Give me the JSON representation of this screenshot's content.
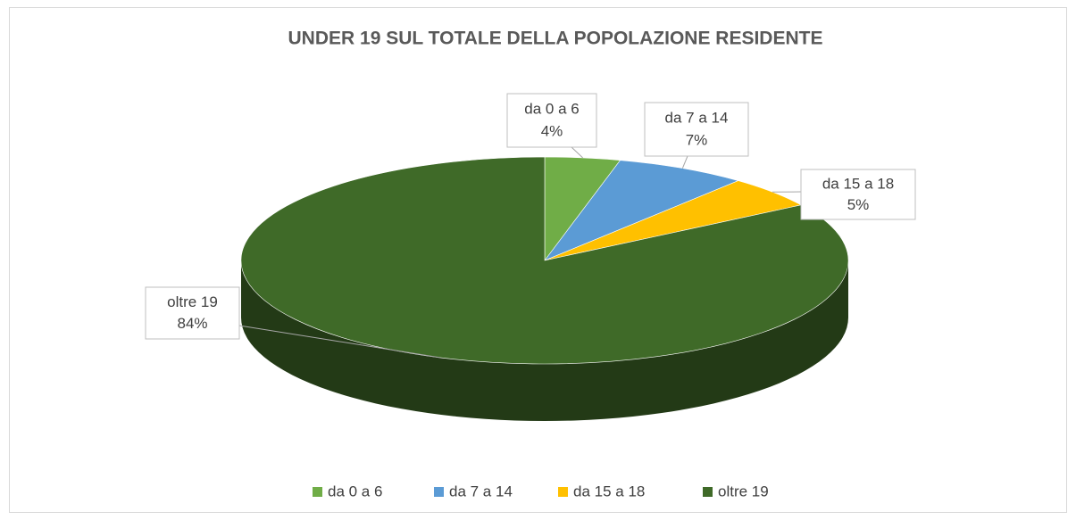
{
  "chart_data": {
    "type": "pie3d",
    "title": "UNDER 19 SUL TOTALE DELLA POPOLAZIONE RESIDENTE",
    "categories": [
      "da 0 a 6",
      "da 7 a 14",
      "da 15 a 18",
      "oltre 19"
    ],
    "values": [
      4,
      7,
      5,
      84
    ],
    "value_labels": [
      "4%",
      "7%",
      "5%",
      "84%"
    ],
    "colors": [
      "#70ad47",
      "#5b9bd5",
      "#ffc000",
      "#3f6a28"
    ],
    "legend": "bottom"
  }
}
